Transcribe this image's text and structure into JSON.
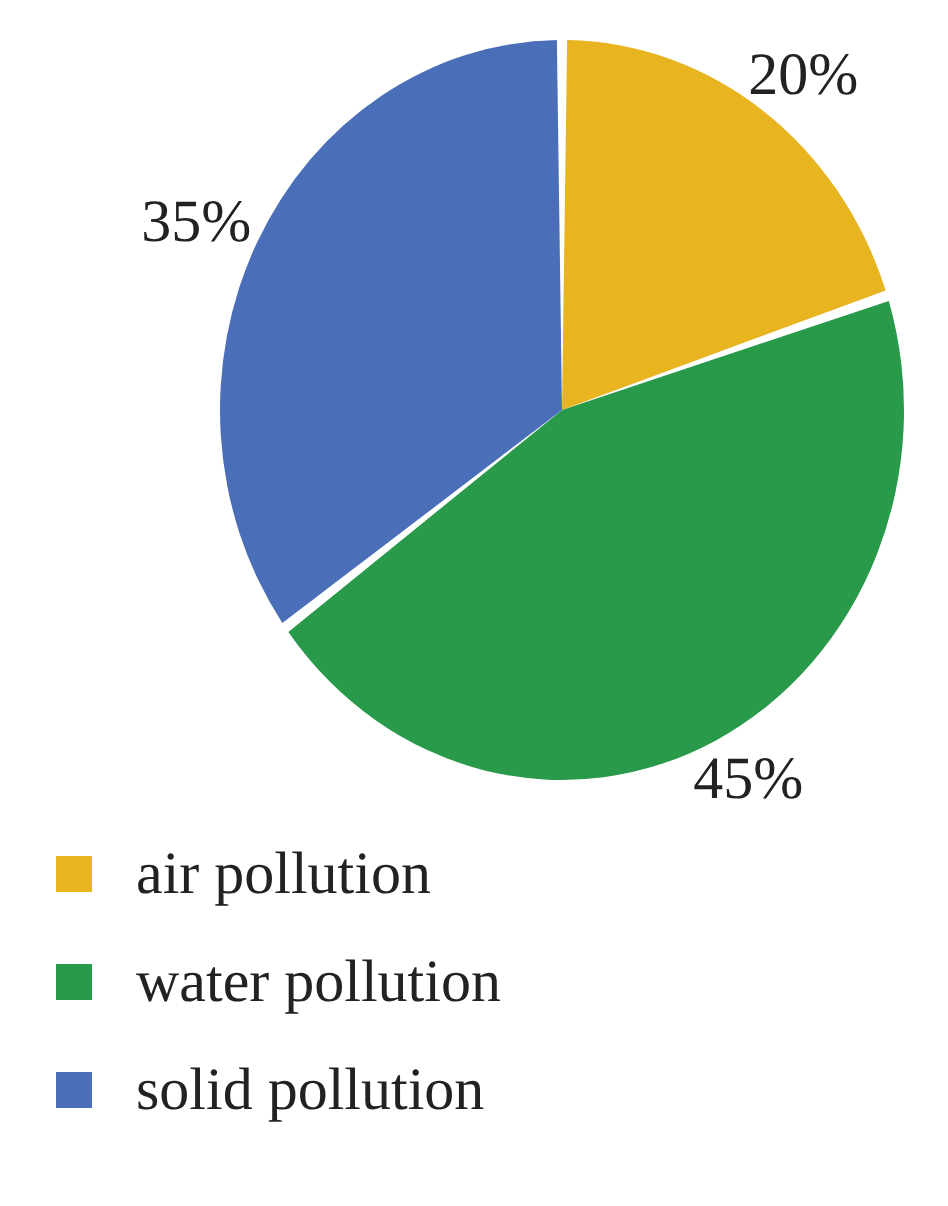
{
  "chart_data": {
    "type": "pie",
    "categories": [
      "air pollution",
      "water pollution",
      "solid pollution"
    ],
    "values": [
      20,
      45,
      35
    ],
    "colors": [
      "#e8b521",
      "#289a4a",
      "#4a6fb8"
    ],
    "value_labels": [
      "20%",
      "45%",
      "35%"
    ],
    "legend": "bottom"
  }
}
